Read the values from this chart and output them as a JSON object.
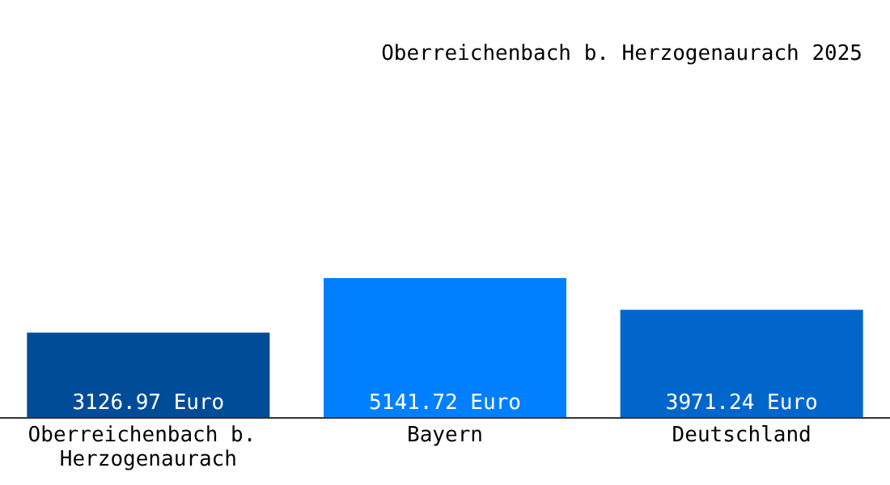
{
  "chart_data": {
    "type": "bar",
    "title": "Oberreichenbach b. Herzogenaurach 2025",
    "categories": [
      "Oberreichenbach b. Herzogenaurach",
      "Bayern",
      "Deutschland"
    ],
    "values": [
      3126.97,
      5141.72,
      3971.24
    ],
    "colors": [
      "#004c99",
      "#0080ff",
      "#0066cc"
    ],
    "value_labels": [
      "3126.97 Euro",
      "5141.72 Euro",
      "3971.24 Euro"
    ]
  }
}
